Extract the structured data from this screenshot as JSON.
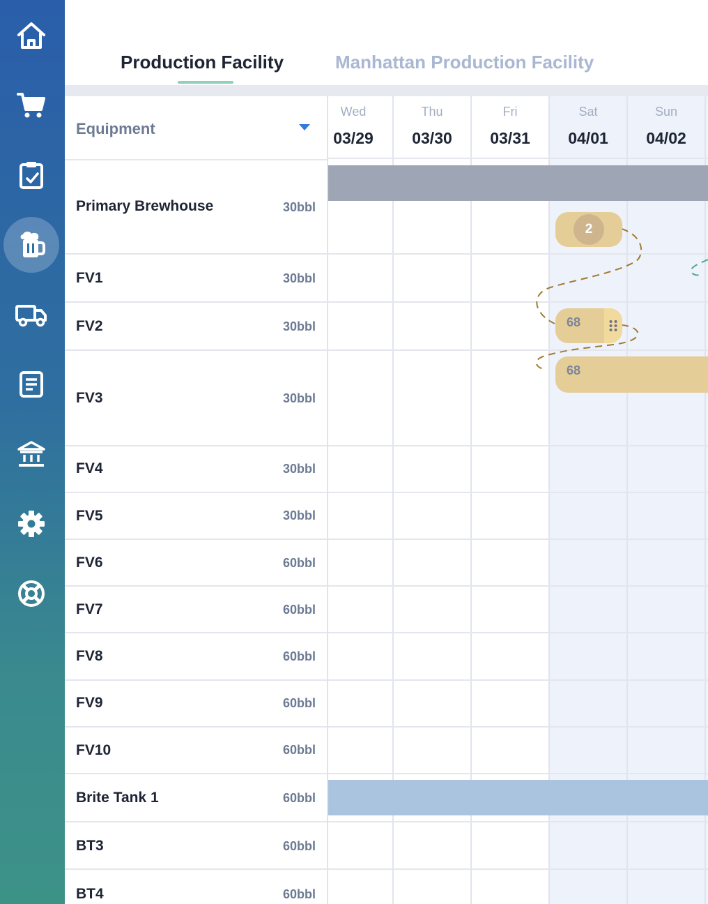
{
  "sidebar": {
    "items": [
      {
        "icon": "home-icon"
      },
      {
        "icon": "cart-icon"
      },
      {
        "icon": "clipboard-check-icon"
      },
      {
        "icon": "beer-mug-icon",
        "active": true
      },
      {
        "icon": "truck-icon"
      },
      {
        "icon": "document-icon"
      },
      {
        "icon": "bank-icon"
      },
      {
        "icon": "gear-icon"
      },
      {
        "icon": "lifebuoy-icon"
      }
    ],
    "colors": {
      "top": "#2a5eaa",
      "bottom": "#3d9288"
    }
  },
  "tabs": {
    "active_label": "Production Facility",
    "inactive_label": "Manhattan Production Facility",
    "underline_color": "#8fd1bd"
  },
  "header": {
    "equipment_label": "Equipment",
    "days": [
      {
        "dow": "Wed",
        "date": "03/29"
      },
      {
        "dow": "Thu",
        "date": "03/30"
      },
      {
        "dow": "Fri",
        "date": "03/31"
      },
      {
        "dow": "Sat",
        "date": "04/01"
      },
      {
        "dow": "Sun",
        "date": "04/02"
      }
    ]
  },
  "equipment": [
    {
      "name": "Primary Brewhouse",
      "capacity": "30bbl"
    },
    {
      "name": "FV1",
      "capacity": "30bbl"
    },
    {
      "name": "FV2",
      "capacity": "30bbl"
    },
    {
      "name": "FV3",
      "capacity": "30bbl"
    },
    {
      "name": "FV4",
      "capacity": "30bbl"
    },
    {
      "name": "FV5",
      "capacity": "30bbl"
    },
    {
      "name": "FV6",
      "capacity": "60bbl"
    },
    {
      "name": "FV7",
      "capacity": "60bbl"
    },
    {
      "name": "FV8",
      "capacity": "60bbl"
    },
    {
      "name": "FV9",
      "capacity": "60bbl"
    },
    {
      "name": "FV10",
      "capacity": "60bbl"
    },
    {
      "name": "Brite Tank 1",
      "capacity": "60bbl"
    },
    {
      "name": "BT3",
      "capacity": "60bbl"
    },
    {
      "name": "BT4",
      "capacity": "60bbl"
    }
  ],
  "schedule": {
    "brewhouse_badge": "2",
    "fv2_batch": "68",
    "fv3_batch": "68",
    "colors": {
      "batch": "#e5cd98",
      "busy": "#9ea6b5",
      "brite": "#aac4e0",
      "connector": "#a07a30"
    }
  }
}
